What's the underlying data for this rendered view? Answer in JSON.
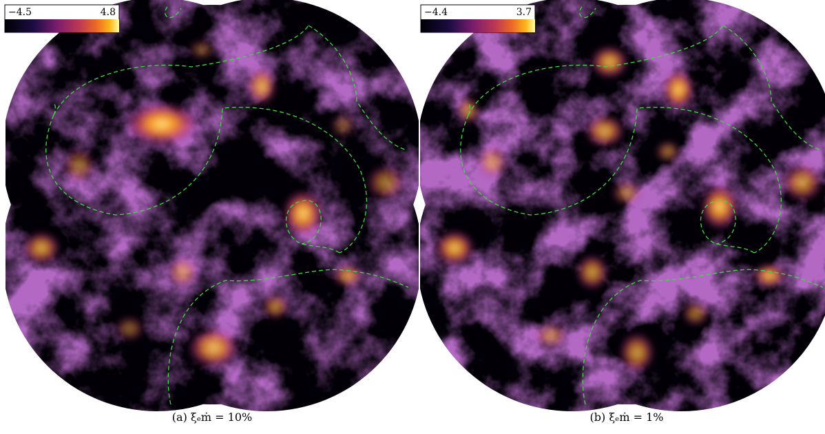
{
  "panels": [
    {
      "colorbar": {
        "min_label": "−4.5",
        "max_label": "4.8"
      },
      "caption": "(a) ξₑṁ = 10%"
    },
    {
      "colorbar": {
        "min_label": "−4.4",
        "max_label": "3.7"
      },
      "caption": "(b) ξₑṁ = 1%"
    }
  ]
}
